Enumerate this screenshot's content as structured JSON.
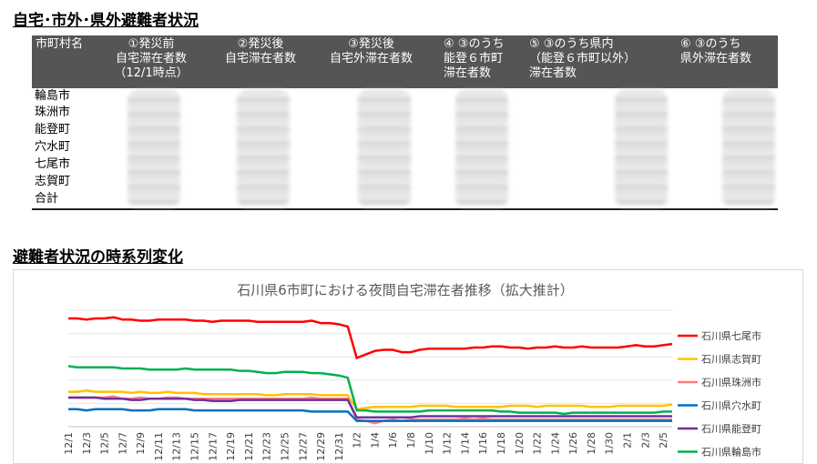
{
  "section1_title": "自宅･市外･県外避難者状況",
  "section2_title": "避難者状況の時系列変化",
  "table": {
    "headers": [
      "市町村名",
      "①発災前\n自宅滞在者数\n（12/1時点）",
      "②発災後\n自宅滞在者数",
      "③発災後\n自宅外滞在者数",
      "④ ③のうち\n能登６市町\n滞在者数",
      "⑤ ③のうち県内\n（能登６市町以外）\n滞在者数",
      "⑥ ③のうち\n県外滞在者数"
    ],
    "rows": [
      "輪島市",
      "珠洲市",
      "能登町",
      "穴水町",
      "七尾市",
      "志賀町",
      "合計"
    ]
  },
  "chart_data": {
    "type": "line",
    "title": "石川県6市町における夜間自宅滞在者推移（拡大推計）",
    "xlabel": "",
    "ylabel": "",
    "ylim": [
      0,
      100
    ],
    "grid": "horizontal",
    "legend_position": "right",
    "x": [
      "12/1",
      "12/2",
      "12/3",
      "12/4",
      "12/5",
      "12/6",
      "12/7",
      "12/8",
      "12/9",
      "12/10",
      "12/11",
      "12/12",
      "12/13",
      "12/14",
      "12/15",
      "12/16",
      "12/17",
      "12/18",
      "12/19",
      "12/20",
      "12/21",
      "12/22",
      "12/23",
      "12/24",
      "12/25",
      "12/26",
      "12/27",
      "12/28",
      "12/29",
      "12/30",
      "12/31",
      "1/1",
      "1/2",
      "1/3",
      "1/4",
      "1/5",
      "1/6",
      "1/7",
      "1/8",
      "1/9",
      "1/10",
      "1/11",
      "1/12",
      "1/13",
      "1/14",
      "1/15",
      "1/16",
      "1/17",
      "1/18",
      "1/19",
      "1/20",
      "1/21",
      "1/22",
      "1/23",
      "1/24",
      "1/25",
      "1/26",
      "1/27",
      "1/28",
      "1/29",
      "1/30",
      "1/31",
      "2/1",
      "2/2",
      "2/3",
      "2/4",
      "2/5",
      "2/6"
    ],
    "tick_labels": [
      "12/1",
      "12/3",
      "12/5",
      "12/7",
      "12/9",
      "12/11",
      "12/13",
      "12/15",
      "12/17",
      "12/19",
      "12/21",
      "12/23",
      "12/25",
      "12/27",
      "12/29",
      "12/31",
      "1/2",
      "1/4",
      "1/6",
      "1/8",
      "1/10",
      "1/12",
      "1/14",
      "1/16",
      "1/18",
      "1/20",
      "1/22",
      "1/24",
      "1/26",
      "1/28",
      "1/30",
      "2/1",
      "2/3",
      "2/5"
    ],
    "series": [
      {
        "name": "石川県七尾市",
        "color": "#ff0000",
        "values": [
          93,
          93,
          92,
          93,
          93,
          94,
          92,
          92,
          91,
          91,
          92,
          92,
          92,
          92,
          91,
          91,
          90,
          91,
          91,
          91,
          91,
          90,
          90,
          90,
          90,
          90,
          90,
          91,
          89,
          89,
          88,
          86,
          59,
          62,
          65,
          66,
          66,
          64,
          64,
          66,
          67,
          67,
          67,
          67,
          67,
          68,
          68,
          69,
          69,
          68,
          68,
          67,
          68,
          68,
          69,
          68,
          68,
          69,
          68,
          68,
          68,
          68,
          69,
          70,
          69,
          69,
          70,
          71
        ]
      },
      {
        "name": "石川県志賀町",
        "color": "#ffc000",
        "values": [
          30,
          30,
          31,
          30,
          30,
          30,
          30,
          29,
          30,
          29,
          29,
          30,
          29,
          29,
          29,
          28,
          28,
          28,
          28,
          28,
          28,
          28,
          27,
          27,
          28,
          28,
          28,
          28,
          27,
          27,
          27,
          27,
          15,
          16,
          17,
          17,
          17,
          17,
          17,
          18,
          18,
          18,
          18,
          17,
          17,
          17,
          17,
          17,
          17,
          18,
          18,
          18,
          17,
          18,
          18,
          18,
          18,
          18,
          17,
          17,
          17,
          18,
          18,
          18,
          18,
          18,
          18,
          19
        ]
      },
      {
        "name": "石川県珠洲市",
        "color": "#ff7c80",
        "values": [
          25,
          25,
          25,
          25,
          25,
          26,
          24,
          24,
          25,
          24,
          24,
          25,
          25,
          24,
          24,
          24,
          24,
          24,
          24,
          24,
          24,
          24,
          24,
          24,
          24,
          24,
          24,
          25,
          24,
          24,
          24,
          24,
          6,
          5,
          3,
          5,
          6,
          5,
          6,
          6,
          6,
          6,
          6,
          6,
          7,
          6,
          7,
          6,
          6,
          6,
          6,
          6,
          6,
          6,
          6,
          6,
          6,
          6,
          6,
          6,
          6,
          6,
          6,
          6,
          6,
          6,
          6,
          6
        ]
      },
      {
        "name": "石川県穴水町",
        "color": "#0070c0",
        "values": [
          15,
          15,
          14,
          15,
          15,
          15,
          15,
          14,
          14,
          14,
          15,
          15,
          15,
          15,
          14,
          14,
          14,
          14,
          14,
          14,
          14,
          14,
          14,
          14,
          14,
          14,
          14,
          13,
          13,
          13,
          13,
          13,
          5,
          5,
          5,
          5,
          5,
          5,
          5,
          5,
          5,
          5,
          5,
          5,
          5,
          5,
          5,
          5,
          5,
          5,
          5,
          5,
          5,
          5,
          5,
          5,
          5,
          5,
          5,
          5,
          5,
          5,
          5,
          5,
          5,
          5,
          5,
          5
        ]
      },
      {
        "name": "石川県能登町",
        "color": "#7030a0",
        "values": [
          25,
          25,
          25,
          25,
          24,
          24,
          24,
          23,
          23,
          24,
          24,
          24,
          24,
          24,
          23,
          23,
          22,
          22,
          22,
          23,
          23,
          23,
          23,
          23,
          23,
          23,
          23,
          23,
          23,
          23,
          23,
          23,
          8,
          8,
          8,
          8,
          8,
          8,
          8,
          9,
          9,
          9,
          9,
          9,
          9,
          9,
          9,
          9,
          9,
          9,
          9,
          9,
          9,
          9,
          9,
          9,
          9,
          9,
          9,
          9,
          9,
          9,
          9,
          9,
          9,
          9,
          9,
          9
        ]
      },
      {
        "name": "石川県輪島市",
        "color": "#00b050",
        "values": [
          52,
          51,
          51,
          51,
          51,
          51,
          50,
          50,
          50,
          49,
          49,
          49,
          49,
          50,
          49,
          49,
          49,
          49,
          49,
          48,
          48,
          47,
          46,
          46,
          47,
          47,
          47,
          46,
          46,
          45,
          44,
          42,
          14,
          14,
          13,
          13,
          13,
          13,
          13,
          13,
          14,
          14,
          14,
          14,
          14,
          14,
          14,
          14,
          13,
          13,
          12,
          12,
          12,
          12,
          12,
          11,
          12,
          12,
          12,
          12,
          12,
          12,
          12,
          12,
          12,
          12,
          13,
          13
        ]
      }
    ]
  }
}
